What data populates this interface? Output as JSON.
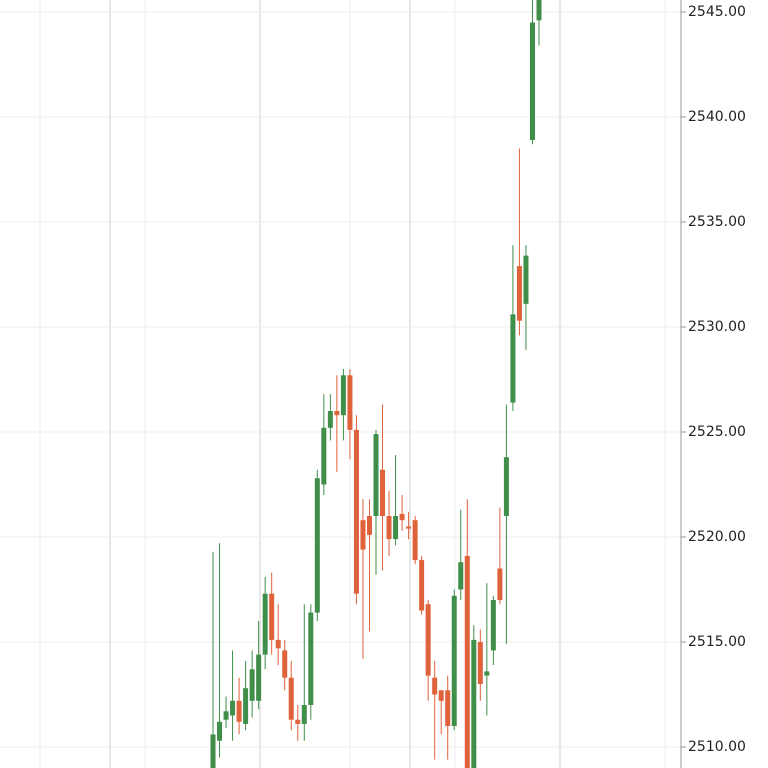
{
  "chart_data": {
    "type": "candlestick",
    "up_color": "#3f8f4a",
    "down_color": "#e0623a",
    "grid": true,
    "ylim": [
      2509,
      2545.57
    ],
    "yticks": [
      {
        "value": 2510,
        "label": "2510.00"
      },
      {
        "value": 2515,
        "label": "2515.00"
      },
      {
        "value": 2520,
        "label": "2520.00"
      },
      {
        "value": 2525,
        "label": "2525.00"
      },
      {
        "value": 2530,
        "label": "2530.00"
      },
      {
        "value": 2535,
        "label": "2535.00"
      },
      {
        "value": 2540,
        "label": "2540.00"
      },
      {
        "value": 2545,
        "label": "2545.00"
      }
    ],
    "open": [
      2508.8,
      2510.3,
      2511.3,
      2511.5,
      2512.2,
      2511.1,
      2512.2,
      2512.2,
      2514.4,
      2517.3,
      2515.1,
      2514.6,
      2513.3,
      2511.3,
      2511.1,
      2512.0,
      2516.4,
      2522.5,
      2525.2,
      2526.0,
      2525.8,
      2527.7,
      2525.1,
      2520.8,
      2521.0,
      2521.0,
      2523.2,
      2521.0,
      2519.9,
      2521.1,
      2520.5,
      2520.8,
      2518.9,
      2516.8,
      2513.3,
      2512.7,
      2512.7,
      2511.0,
      2517.5,
      2519.1,
      2508.8,
      2515.0,
      2513.4,
      2514.6,
      2518.5,
      2521.0,
      2526.4,
      2532.9,
      2531.1,
      2538.9,
      2544.6
    ],
    "high": [
      2519.3,
      2519.7,
      2512.4,
      2514.6,
      2513.3,
      2514.1,
      2514.6,
      2516.0,
      2518.1,
      2518.3,
      2516.8,
      2515.1,
      2514.1,
      2512.0,
      2516.8,
      2516.8,
      2523.2,
      2526.8,
      2526.8,
      2527.7,
      2528.0,
      2528.0,
      2525.8,
      2521.8,
      2521.8,
      2525.1,
      2526.3,
      2522.2,
      2523.9,
      2522.0,
      2521.2,
      2521.0,
      2519.1,
      2517.0,
      2514.1,
      2512.7,
      2513.4,
      2517.5,
      2521.3,
      2521.8,
      2515.8,
      2515.6,
      2517.8,
      2517.2,
      2521.4,
      2526.3,
      2533.9,
      2538.5,
      2533.9,
      2545.6,
      2546.0
    ],
    "low": [
      2508.0,
      2509.5,
      2510.9,
      2510.3,
      2510.6,
      2510.8,
      2511.4,
      2511.8,
      2513.7,
      2514.4,
      2513.9,
      2512.7,
      2510.8,
      2510.3,
      2510.3,
      2511.3,
      2516.0,
      2522.0,
      2524.6,
      2523.1,
      2524.6,
      2523.7,
      2516.8,
      2514.2,
      2515.5,
      2518.2,
      2518.4,
      2519.1,
      2519.6,
      2520.3,
      2519.9,
      2518.7,
      2516.3,
      2512.2,
      2509.4,
      2510.6,
      2509.4,
      2510.8,
      2517.0,
      2508.5,
      2508.5,
      2512.2,
      2511.5,
      2513.9,
      2516.8,
      2514.9,
      2526.0,
      2529.6,
      2528.9,
      2538.7,
      2543.4
    ],
    "close": [
      2510.6,
      2511.2,
      2511.7,
      2512.2,
      2511.2,
      2512.8,
      2513.7,
      2514.4,
      2517.3,
      2515.1,
      2514.7,
      2513.3,
      2511.3,
      2511.1,
      2512.0,
      2516.4,
      2522.8,
      2525.2,
      2526.0,
      2525.8,
      2527.7,
      2525.1,
      2517.3,
      2519.4,
      2520.1,
      2524.9,
      2521.0,
      2519.9,
      2521.0,
      2520.8,
      2520.4,
      2518.9,
      2516.5,
      2513.4,
      2512.5,
      2512.2,
      2511.0,
      2517.2,
      2518.8,
      2508.8,
      2515.1,
      2513.0,
      2513.6,
      2517.0,
      2517.0,
      2523.8,
      2530.6,
      2530.3,
      2533.4,
      2544.5,
      2546.0
    ]
  }
}
